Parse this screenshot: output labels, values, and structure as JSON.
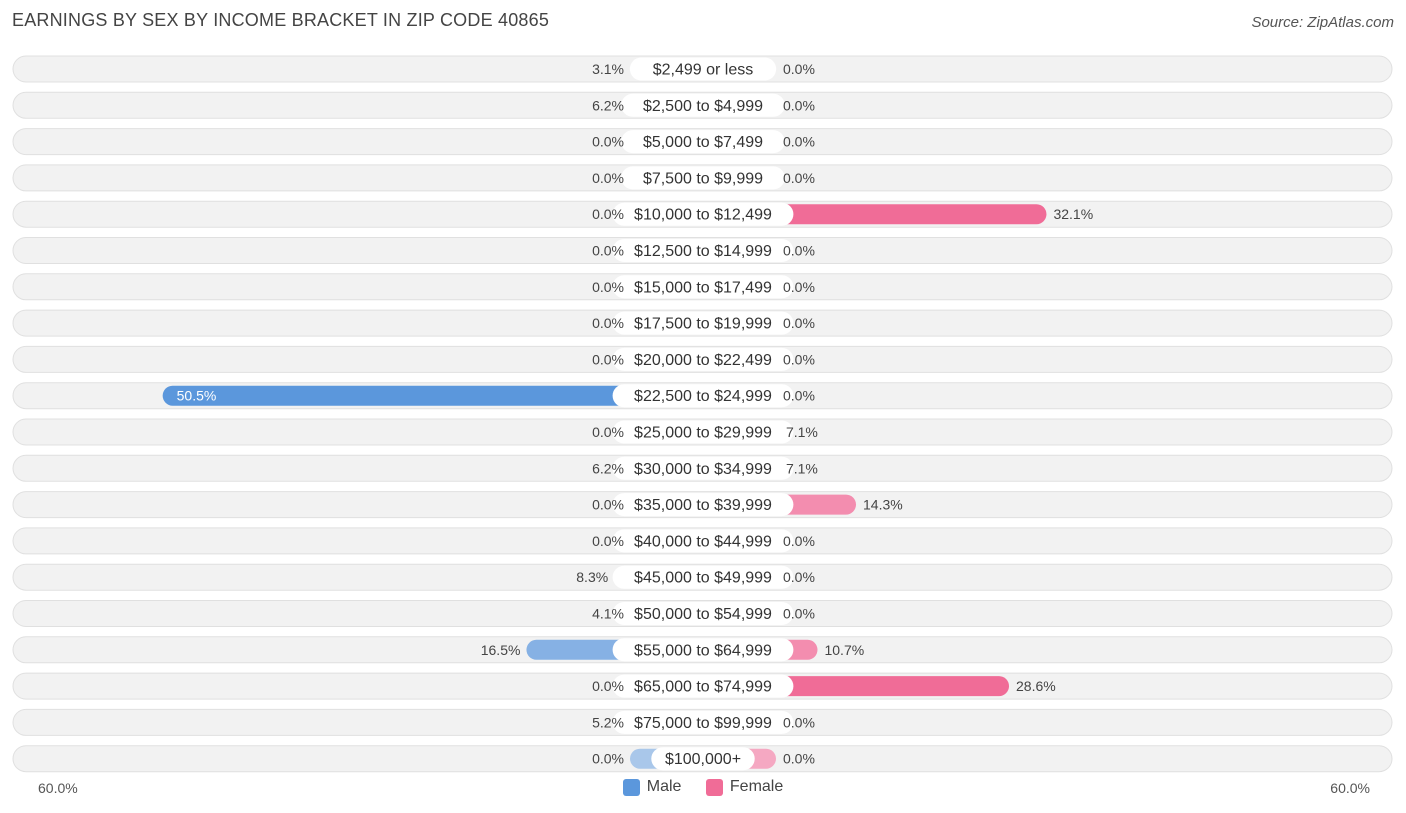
{
  "title": "EARNINGS BY SEX BY INCOME BRACKET IN ZIP CODE 40865",
  "source": "Source: ZipAtlas.com",
  "colors": {
    "male_light": "#a9c7ea",
    "male_strong": "#5b97dc",
    "female_light": "#f5a8c2",
    "female_strong": "#f06c97",
    "row_bg": "#f2f2f2"
  },
  "legend": {
    "male": "Male",
    "female": "Female"
  },
  "axis": {
    "left_label": "60.0%",
    "right_label": "60.0%"
  },
  "chart_data": {
    "type": "bar",
    "orientation": "horizontal-diverging",
    "title": "EARNINGS BY SEX BY INCOME BRACKET IN ZIP CODE 40865",
    "xlim": [
      -60,
      60
    ],
    "categories": [
      "$2,499 or less",
      "$2,500 to $4,999",
      "$5,000 to $7,499",
      "$7,500 to $9,999",
      "$10,000 to $12,499",
      "$12,500 to $14,999",
      "$15,000 to $17,499",
      "$17,500 to $19,999",
      "$20,000 to $22,499",
      "$22,500 to $24,999",
      "$25,000 to $29,999",
      "$30,000 to $34,999",
      "$35,000 to $39,999",
      "$40,000 to $44,999",
      "$45,000 to $49,999",
      "$50,000 to $54,999",
      "$55,000 to $64,999",
      "$65,000 to $74,999",
      "$75,000 to $99,999",
      "$100,000+"
    ],
    "series": [
      {
        "name": "Male",
        "values": [
          3.1,
          6.2,
          0.0,
          0.0,
          0.0,
          0.0,
          0.0,
          0.0,
          0.0,
          50.5,
          0.0,
          6.2,
          0.0,
          0.0,
          8.3,
          4.1,
          16.5,
          0.0,
          5.2,
          0.0
        ],
        "labels": [
          "3.1%",
          "6.2%",
          "0.0%",
          "0.0%",
          "0.0%",
          "0.0%",
          "0.0%",
          "0.0%",
          "0.0%",
          "50.5%",
          "0.0%",
          "6.2%",
          "0.0%",
          "0.0%",
          "8.3%",
          "4.1%",
          "16.5%",
          "0.0%",
          "5.2%",
          "0.0%"
        ]
      },
      {
        "name": "Female",
        "values": [
          0.0,
          0.0,
          0.0,
          0.0,
          32.1,
          0.0,
          0.0,
          0.0,
          0.0,
          0.0,
          7.1,
          7.1,
          14.3,
          0.0,
          0.0,
          0.0,
          10.7,
          28.6,
          0.0,
          0.0
        ],
        "labels": [
          "0.0%",
          "0.0%",
          "0.0%",
          "0.0%",
          "32.1%",
          "0.0%",
          "0.0%",
          "0.0%",
          "0.0%",
          "0.0%",
          "7.1%",
          "7.1%",
          "14.3%",
          "0.0%",
          "0.0%",
          "0.0%",
          "10.7%",
          "28.6%",
          "0.0%",
          "0.0%"
        ]
      }
    ],
    "xlabel": "",
    "ylabel": ""
  }
}
